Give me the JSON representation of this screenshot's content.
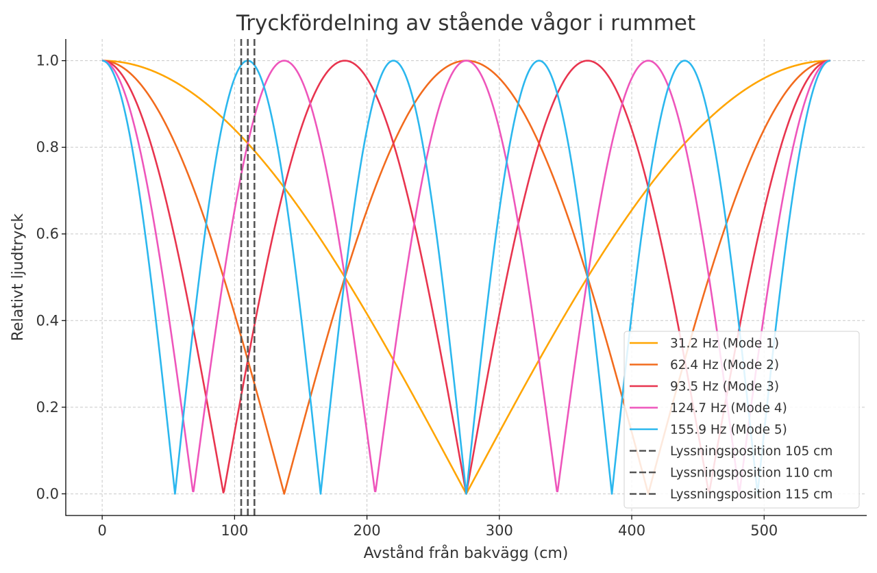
{
  "chart_data": {
    "type": "line",
    "title": "Tryckfördelning av stående vågor i rummet",
    "xlabel": "Avstånd från bakvägg (cm)",
    "ylabel": "Relativt ljudtryck",
    "xlim": [
      -27.5,
      577.5
    ],
    "ylim": [
      -0.05,
      1.05
    ],
    "xticks": [
      0,
      100,
      200,
      300,
      400,
      500
    ],
    "yticks": [
      "0.0",
      "0.2",
      "0.4",
      "0.6",
      "0.8",
      "1.0"
    ],
    "yticks_values": [
      0,
      0.2,
      0.4,
      0.6,
      0.8,
      1.0
    ],
    "grid": true,
    "legend_position": "lower-right",
    "room_length_cm": 550,
    "function": "abs(cos(n*pi*x/L))",
    "series": [
      {
        "name": "31.2 Hz (Mode 1)",
        "mode": 1,
        "color": "#FFA500"
      },
      {
        "name": "62.4 Hz (Mode 2)",
        "mode": 2,
        "color": "#F26B1D"
      },
      {
        "name": "93.5 Hz (Mode 3)",
        "mode": 3,
        "color": "#E8344E"
      },
      {
        "name": "124.7 Hz (Mode 4)",
        "mode": 4,
        "color": "#EE55BB"
      },
      {
        "name": "155.9 Hz (Mode 5)",
        "mode": 5,
        "color": "#2BB7EE"
      }
    ],
    "vlines": [
      {
        "name": "Lyssningsposition 105 cm",
        "x": 105,
        "color": "#555555"
      },
      {
        "name": "Lyssningsposition 110 cm",
        "x": 110,
        "color": "#555555"
      },
      {
        "name": "Lyssningsposition 115 cm",
        "x": 115,
        "color": "#555555"
      }
    ]
  }
}
